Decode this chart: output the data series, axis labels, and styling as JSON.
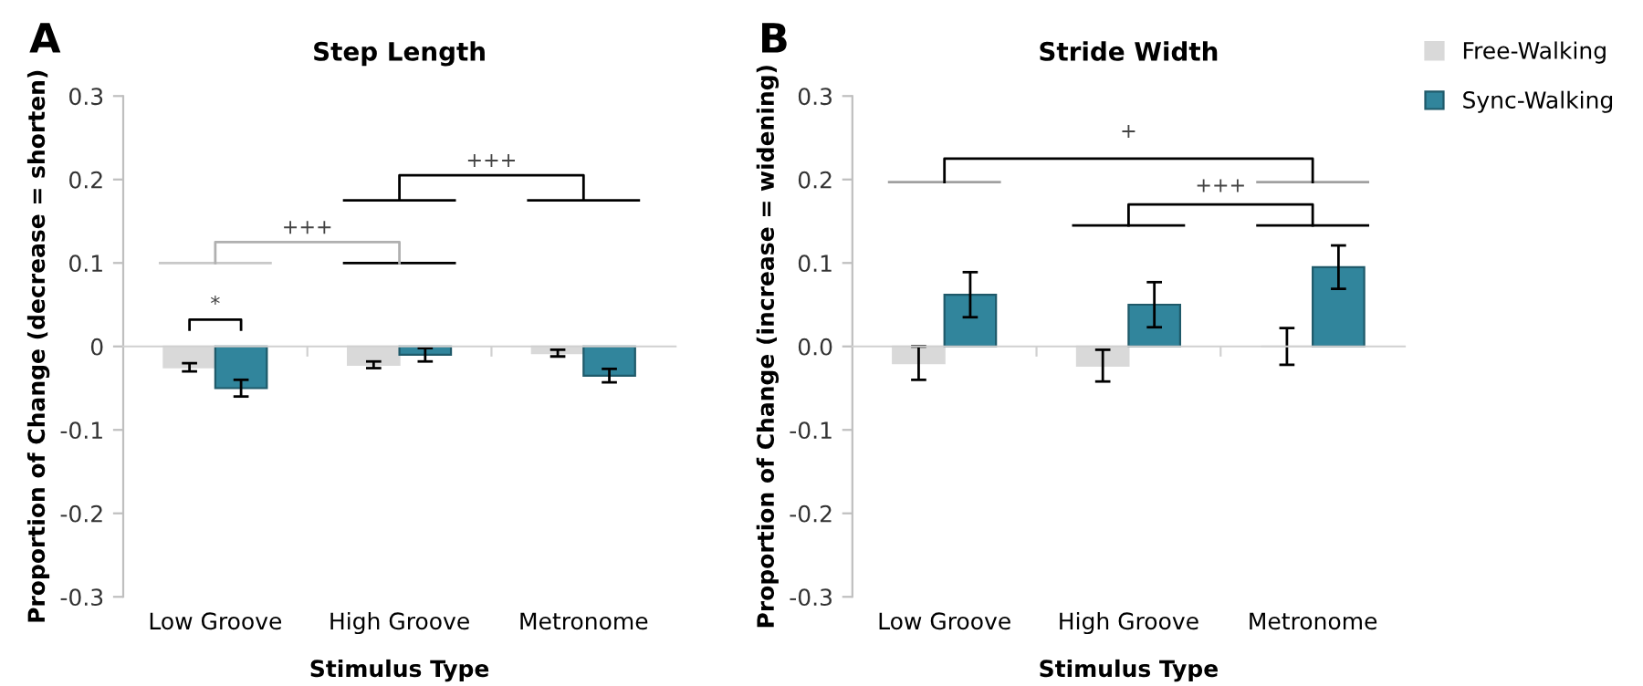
{
  "chart_data": [
    {
      "type": "bar",
      "title": "Step Length",
      "xlabel": "Stimulus Type",
      "ylabel": "Proportion of Change (decrease = shorten)",
      "categories": [
        "Low Groove",
        "High Groove",
        "Metronome"
      ],
      "series": [
        {
          "color": "#d9d9d9",
          "values": [
            -0.025,
            -0.022,
            -0.008
          ],
          "errors": [
            0.005,
            0.004,
            0.004
          ]
        },
        {
          "color": "#31859c",
          "values": [
            -0.05,
            -0.01,
            -0.035
          ],
          "errors": [
            0.01,
            0.008,
            0.008
          ]
        }
      ],
      "ylim": [
        -0.3,
        0.3
      ],
      "yticks": [
        -0.3,
        -0.2,
        -0.1,
        0,
        0.1,
        0.2,
        0.3
      ],
      "annotations": [
        "A",
        "*",
        "+++",
        "+++"
      ]
    },
    {
      "type": "bar",
      "title": "Stride Width",
      "xlabel": "Stimulus Type",
      "ylabel": "Proportion of Change (increase = widening)",
      "categories": [
        "Low Groove",
        "High Groove",
        "Metronome"
      ],
      "series": [
        {
          "name": "Free-Walking",
          "color": "#d9d9d9",
          "values": [
            -0.02,
            -0.023,
            0.0
          ],
          "errors": [
            0.02,
            0.019,
            0.022
          ]
        },
        {
          "name": "Sync-Walking",
          "color": "#31859c",
          "values": [
            0.062,
            0.05,
            0.095
          ],
          "errors": [
            0.027,
            0.027,
            0.026
          ]
        }
      ],
      "ylim": [
        -0.3,
        0.3
      ],
      "yticks": [
        -0.3,
        -0.2,
        -0.1,
        {
          "value": 0,
          "label": "0.0"
        },
        0.1,
        0.2,
        0.3
      ],
      "annotations": [
        "B",
        "+",
        "+++"
      ],
      "legend": "top right"
    }
  ]
}
